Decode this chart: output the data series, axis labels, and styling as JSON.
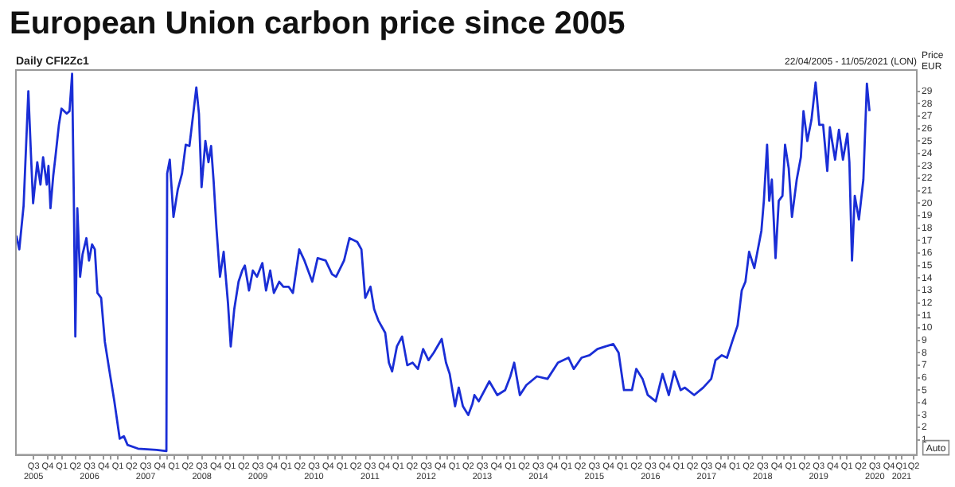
{
  "chart_data": {
    "type": "line",
    "title": "European Union carbon price since 2005",
    "subtitle": "Daily CFI2Zc1",
    "ylabel": "Price EUR",
    "annotations": [
      "22/04/2005 - 11/05/2021 (LON)",
      "Auto"
    ],
    "x": [
      "2005-04-25",
      "2005-05-14",
      "2005-06-11",
      "2005-07-12",
      "2005-07-29",
      "2005-08-12",
      "2005-09-08",
      "2005-09-29",
      "2005-10-16",
      "2005-11-09",
      "2005-11-20",
      "2005-12-03",
      "2005-12-21",
      "2006-01-04",
      "2006-01-27",
      "2006-02-13",
      "2006-03-19",
      "2006-04-06",
      "2006-04-23",
      "2006-05-04",
      "2006-05-14",
      "2006-05-27",
      "2006-06-14",
      "2006-06-30",
      "2006-07-25",
      "2006-08-11",
      "2006-08-31",
      "2006-09-18",
      "2006-10-05",
      "2006-10-29",
      "2006-11-22",
      "2006-12-20",
      "2007-01-23",
      "2007-02-27",
      "2007-03-26",
      "2007-04-19",
      "2007-06-26",
      "2007-10-25",
      "2007-12-28",
      "2008-01-02",
      "2008-01-19",
      "2008-02-12",
      "2008-03-11",
      "2008-04-08",
      "2008-05-02",
      "2008-05-26",
      "2008-06-22",
      "2008-07-10",
      "2008-07-27",
      "2008-08-13",
      "2008-09-07",
      "2008-09-27",
      "2008-10-14",
      "2008-10-31",
      "2008-11-18",
      "2008-12-11",
      "2009-01-04",
      "2009-02-01",
      "2009-02-19",
      "2009-03-14",
      "2009-04-11",
      "2009-05-05",
      "2009-05-22",
      "2009-06-18",
      "2009-07-13",
      "2009-08-09",
      "2009-09-13",
      "2009-10-07",
      "2009-11-03",
      "2009-11-27",
      "2010-01-01",
      "2010-01-28",
      "2010-03-03",
      "2010-03-31",
      "2010-05-11",
      "2010-06-14",
      "2010-08-04",
      "2010-09-08",
      "2010-10-30",
      "2010-12-11",
      "2011-01-06",
      "2011-02-27",
      "2011-04-03",
      "2011-05-24",
      "2011-06-20",
      "2011-07-15",
      "2011-08-18",
      "2011-09-11",
      "2011-10-08",
      "2011-11-22",
      "2011-12-16",
      "2012-01-06",
      "2012-02-06",
      "2012-03-11",
      "2012-04-14",
      "2012-05-19",
      "2012-06-22",
      "2012-07-26",
      "2012-08-30",
      "2012-10-03",
      "2012-11-24",
      "2012-12-22",
      "2013-01-15",
      "2013-02-19",
      "2013-03-15",
      "2013-04-11",
      "2013-05-16",
      "2013-06-12",
      "2013-06-25",
      "2013-07-23",
      "2013-09-30",
      "2013-11-21",
      "2014-01-11",
      "2014-02-14",
      "2014-03-11",
      "2014-04-17",
      "2014-05-29",
      "2014-08-06",
      "2014-10-14",
      "2014-12-21",
      "2015-02-28",
      "2015-04-03",
      "2015-05-24",
      "2015-07-15",
      "2015-09-04",
      "2015-10-26",
      "2015-12-16",
      "2016-01-20",
      "2016-02-24",
      "2016-04-16",
      "2016-05-14",
      "2016-06-24",
      "2016-07-28",
      "2016-09-18",
      "2016-11-01",
      "2016-12-12",
      "2017-01-16",
      "2017-02-27",
      "2017-03-26",
      "2017-05-26",
      "2017-07-24",
      "2017-09-14",
      "2017-10-12",
      "2017-11-22",
      "2017-12-26",
      "2018-01-29",
      "2018-03-05",
      "2018-04-01",
      "2018-04-25",
      "2018-05-19",
      "2018-06-22",
      "2018-08-07",
      "2018-08-23",
      "2018-09-13",
      "2018-09-27",
      "2018-10-14",
      "2018-11-07",
      "2018-11-28",
      "2018-12-22",
      "2019-01-08",
      "2019-02-01",
      "2019-02-22",
      "2019-03-25",
      "2019-04-21",
      "2019-05-08",
      "2019-06-02",
      "2019-06-29",
      "2019-07-26",
      "2019-08-19",
      "2019-09-13",
      "2019-10-10",
      "2019-10-27",
      "2019-11-30",
      "2019-12-25",
      "2020-01-20",
      "2020-02-18",
      "2020-03-02",
      "2020-03-19",
      "2020-04-06",
      "2020-05-03",
      "2020-06-01",
      "2020-06-24",
      "2020-07-11"
    ],
    "series": [
      {
        "color": "#1a2ed6",
        "values": [
          17.4,
          16.3,
          19.8,
          29.0,
          23.9,
          20.0,
          23.3,
          21.5,
          23.7,
          21.5,
          23.0,
          19.6,
          22.2,
          23.7,
          26.3,
          27.6,
          27.2,
          27.4,
          30.4,
          20.6,
          9.3,
          19.6,
          14.1,
          15.9,
          17.2,
          15.4,
          16.7,
          16.3,
          12.8,
          12.4,
          8.9,
          6.7,
          4.1,
          1.1,
          1.3,
          0.6,
          0.3,
          0.2,
          0.1,
          22.4,
          23.5,
          18.9,
          21.1,
          22.4,
          24.7,
          24.6,
          27.4,
          29.3,
          27.2,
          21.3,
          25.0,
          23.3,
          24.6,
          21.7,
          18.0,
          14.1,
          16.1,
          12.0,
          8.5,
          11.5,
          13.7,
          14.6,
          15.0,
          13.0,
          14.6,
          14.1,
          15.2,
          13.0,
          14.6,
          12.8,
          13.7,
          13.3,
          13.3,
          12.8,
          16.3,
          15.4,
          13.7,
          15.6,
          15.4,
          14.3,
          14.1,
          15.4,
          17.2,
          16.9,
          16.3,
          12.4,
          13.3,
          11.5,
          10.6,
          9.6,
          7.2,
          6.5,
          8.5,
          9.3,
          7.0,
          7.2,
          6.7,
          8.3,
          7.4,
          8.0,
          9.1,
          7.2,
          6.3,
          3.7,
          5.2,
          3.7,
          3.0,
          3.9,
          4.6,
          4.1,
          5.7,
          4.6,
          5.0,
          6.1,
          7.2,
          4.6,
          5.4,
          6.1,
          5.9,
          7.2,
          7.6,
          6.7,
          7.6,
          7.8,
          8.3,
          8.5,
          8.7,
          8.0,
          5.0,
          5.0,
          6.7,
          5.9,
          4.6,
          4.1,
          6.3,
          4.6,
          6.5,
          5.0,
          5.2,
          4.6,
          5.2,
          5.9,
          7.4,
          7.8,
          7.6,
          8.9,
          10.2,
          13.0,
          13.7,
          16.1,
          14.8,
          17.8,
          20.2,
          24.7,
          20.2,
          21.9,
          15.6,
          20.2,
          20.6,
          24.7,
          22.8,
          18.9,
          21.9,
          23.7,
          27.4,
          25.0,
          26.7,
          29.7,
          26.3,
          26.3,
          22.6,
          26.1,
          23.5,
          25.9,
          23.5,
          25.6,
          23.3,
          15.4,
          20.6,
          18.7,
          21.9,
          29.6,
          27.4
        ]
      }
    ],
    "xlim": [
      "2005-04-22",
      "2021-05-15"
    ],
    "xticks": [
      {
        "value": "2005-08-15",
        "label": "Q3\n2005"
      },
      {
        "value": "2005-11-15",
        "label": "Q4"
      },
      {
        "value": "2006-01-01",
        "label": null
      },
      {
        "value": "2006-02-15",
        "label": "Q1"
      },
      {
        "value": "2006-05-15",
        "label": "Q2"
      },
      {
        "value": "2006-08-15",
        "label": "Q3\n2006"
      },
      {
        "value": "2006-11-15",
        "label": "Q4"
      },
      {
        "value": "2007-01-01",
        "label": null
      },
      {
        "value": "2007-02-15",
        "label": "Q1"
      },
      {
        "value": "2007-05-15",
        "label": "Q2"
      },
      {
        "value": "2007-08-15",
        "label": "Q3\n2007"
      },
      {
        "value": "2007-11-15",
        "label": "Q4"
      },
      {
        "value": "2008-01-01",
        "label": null
      },
      {
        "value": "2008-02-15",
        "label": "Q1"
      },
      {
        "value": "2008-05-15",
        "label": "Q2"
      },
      {
        "value": "2008-08-15",
        "label": "Q3\n2008"
      },
      {
        "value": "2008-11-15",
        "label": "Q4"
      },
      {
        "value": "2009-01-01",
        "label": null
      },
      {
        "value": "2009-02-15",
        "label": "Q1"
      },
      {
        "value": "2009-05-15",
        "label": "Q2"
      },
      {
        "value": "2009-08-15",
        "label": "Q3\n2009"
      },
      {
        "value": "2009-11-15",
        "label": "Q4"
      },
      {
        "value": "2010-01-01",
        "label": null
      },
      {
        "value": "2010-02-15",
        "label": "Q1"
      },
      {
        "value": "2010-05-15",
        "label": "Q2"
      },
      {
        "value": "2010-08-15",
        "label": "Q3\n2010"
      },
      {
        "value": "2010-11-15",
        "label": "Q4"
      },
      {
        "value": "2011-01-01",
        "label": null
      },
      {
        "value": "2011-02-15",
        "label": "Q1"
      },
      {
        "value": "2011-05-15",
        "label": "Q2"
      },
      {
        "value": "2011-08-15",
        "label": "Q3\n2011"
      },
      {
        "value": "2011-11-15",
        "label": "Q4"
      },
      {
        "value": "2012-01-01",
        "label": null
      },
      {
        "value": "2012-02-15",
        "label": "Q1"
      },
      {
        "value": "2012-05-15",
        "label": "Q2"
      },
      {
        "value": "2012-08-15",
        "label": "Q3\n2012"
      },
      {
        "value": "2012-11-15",
        "label": "Q4"
      },
      {
        "value": "2013-01-01",
        "label": null
      },
      {
        "value": "2013-02-15",
        "label": "Q1"
      },
      {
        "value": "2013-05-15",
        "label": "Q2"
      },
      {
        "value": "2013-08-15",
        "label": "Q3\n2013"
      },
      {
        "value": "2013-11-15",
        "label": "Q4"
      },
      {
        "value": "2014-01-01",
        "label": null
      },
      {
        "value": "2014-02-15",
        "label": "Q1"
      },
      {
        "value": "2014-05-15",
        "label": "Q2"
      },
      {
        "value": "2014-08-15",
        "label": "Q3\n2014"
      },
      {
        "value": "2014-11-15",
        "label": "Q4"
      },
      {
        "value": "2015-01-01",
        "label": null
      },
      {
        "value": "2015-02-15",
        "label": "Q1"
      },
      {
        "value": "2015-05-15",
        "label": "Q2"
      },
      {
        "value": "2015-08-15",
        "label": "Q3\n2015"
      },
      {
        "value": "2015-11-15",
        "label": "Q4"
      },
      {
        "value": "2016-01-01",
        "label": null
      },
      {
        "value": "2016-02-15",
        "label": "Q1"
      },
      {
        "value": "2016-05-15",
        "label": "Q2"
      },
      {
        "value": "2016-08-15",
        "label": "Q3\n2016"
      },
      {
        "value": "2016-11-15",
        "label": "Q4"
      },
      {
        "value": "2017-01-01",
        "label": null
      },
      {
        "value": "2017-02-15",
        "label": "Q1"
      },
      {
        "value": "2017-05-15",
        "label": "Q2"
      },
      {
        "value": "2017-08-15",
        "label": "Q3\n2017"
      },
      {
        "value": "2017-11-15",
        "label": "Q4"
      },
      {
        "value": "2018-01-01",
        "label": null
      },
      {
        "value": "2018-02-15",
        "label": "Q1"
      },
      {
        "value": "2018-05-15",
        "label": "Q2"
      },
      {
        "value": "2018-08-15",
        "label": "Q3\n2018"
      },
      {
        "value": "2018-11-15",
        "label": "Q4"
      },
      {
        "value": "2019-01-01",
        "label": null
      },
      {
        "value": "2019-02-15",
        "label": "Q1"
      },
      {
        "value": "2019-05-15",
        "label": "Q2"
      },
      {
        "value": "2019-08-15",
        "label": "Q3\n2019"
      },
      {
        "value": "2019-11-15",
        "label": "Q4"
      },
      {
        "value": "2020-01-01",
        "label": null
      },
      {
        "value": "2020-02-15",
        "label": "Q1"
      },
      {
        "value": "2020-05-15",
        "label": "Q2"
      },
      {
        "value": "2020-08-15",
        "label": "Q3\n2020"
      },
      {
        "value": "2020-11-15",
        "label": "Q4"
      },
      {
        "value": "2021-01-01",
        "label": null
      },
      {
        "value": "2021-02-05",
        "label": "Q1\n2021"
      },
      {
        "value": "2021-04-25",
        "label": "Q2"
      }
    ],
    "ylim": [
      -0.2,
      30.7
    ],
    "yticks": [
      1,
      2,
      3,
      4,
      5,
      6,
      7,
      8,
      9,
      10,
      11,
      12,
      13,
      14,
      15,
      16,
      17,
      18,
      19,
      20,
      21,
      22,
      23,
      24,
      25,
      26,
      27,
      28,
      29
    ],
    "grid": false,
    "legend": false,
    "marker": "none",
    "line_style": "solid"
  }
}
